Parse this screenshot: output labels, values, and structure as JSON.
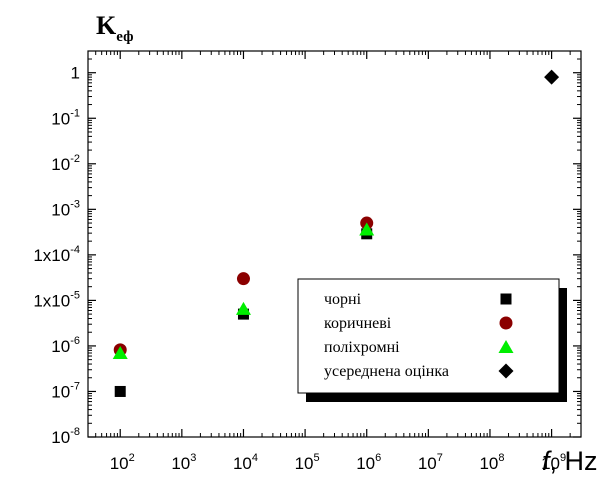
{
  "chart_data": {
    "type": "scatter",
    "title": "",
    "ylabel": {
      "main": "K",
      "sub": "еф"
    },
    "xlabel": {
      "var": "f",
      "unit": ", Hz"
    },
    "x_scale": "log",
    "y_scale": "log",
    "xlim": [
      30,
      3000000000
    ],
    "ylim": [
      1e-08,
      3
    ],
    "x_ticks": [
      {
        "value": 100,
        "base": "10",
        "exp": "2"
      },
      {
        "value": 1000,
        "base": "10",
        "exp": "3"
      },
      {
        "value": 10000,
        "base": "10",
        "exp": "4"
      },
      {
        "value": 100000,
        "base": "10",
        "exp": "5"
      },
      {
        "value": 1000000,
        "base": "10",
        "exp": "6"
      },
      {
        "value": 10000000,
        "base": "10",
        "exp": "7"
      },
      {
        "value": 100000000,
        "base": "10",
        "exp": "8"
      },
      {
        "value": 1000000000,
        "base": "10",
        "exp": "9"
      }
    ],
    "y_ticks": [
      {
        "value": 1e-08,
        "base": "10",
        "exp": "-8"
      },
      {
        "value": 1e-07,
        "base": "10",
        "exp": "-7"
      },
      {
        "value": 1e-06,
        "base": "10",
        "exp": "-6"
      },
      {
        "value": 1e-05,
        "base": "1x10",
        "exp": "-5"
      },
      {
        "value": 0.0001,
        "base": "1x10",
        "exp": "-4"
      },
      {
        "value": 0.001,
        "base": "10",
        "exp": "-3"
      },
      {
        "value": 0.01,
        "base": "10",
        "exp": "-2"
      },
      {
        "value": 0.1,
        "base": "10",
        "exp": "-1"
      },
      {
        "value": 1,
        "base": "1",
        "exp": ""
      }
    ],
    "grid": false,
    "legend_position": "bottom-right",
    "series": [
      {
        "name": "чорні",
        "marker": "square",
        "color": "#000000",
        "points": [
          [
            100,
            1e-07
          ],
          [
            10000,
            5e-06
          ],
          [
            1000000,
            0.00029
          ]
        ]
      },
      {
        "name": "коричневі",
        "marker": "circle",
        "color": "#8b0000",
        "points": [
          [
            100,
            8.2e-07
          ],
          [
            10000,
            3e-05
          ],
          [
            1000000,
            0.0005
          ]
        ]
      },
      {
        "name": "поліхромні",
        "marker": "triangle",
        "color": "#00ee00",
        "points": [
          [
            100,
            7e-07
          ],
          [
            10000,
            6.5e-06
          ],
          [
            1000000,
            0.00036
          ]
        ]
      },
      {
        "name": "усереднена оцінка",
        "marker": "diamond",
        "color": "#000000",
        "points": [
          [
            1000000000,
            0.8
          ]
        ]
      }
    ]
  }
}
